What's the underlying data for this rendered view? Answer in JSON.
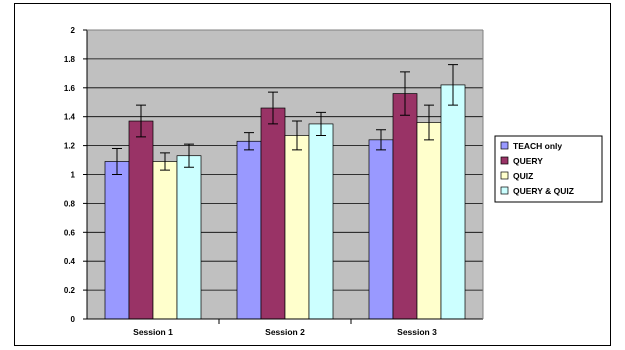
{
  "chart_data": {
    "type": "bar",
    "categories": [
      "Session 1",
      "Session 2",
      "Session 3"
    ],
    "series": [
      {
        "name": "TEACH only",
        "values": [
          1.09,
          1.23,
          1.24
        ],
        "errors": [
          0.09,
          0.06,
          0.07
        ],
        "color": "#9999FF"
      },
      {
        "name": "QUERY",
        "values": [
          1.37,
          1.46,
          1.56
        ],
        "errors": [
          0.11,
          0.11,
          0.15
        ],
        "color": "#993366"
      },
      {
        "name": "QUIZ",
        "values": [
          1.09,
          1.27,
          1.36
        ],
        "errors": [
          0.06,
          0.1,
          0.12
        ],
        "color": "#FFFFCC"
      },
      {
        "name": "QUERY & QUIZ",
        "values": [
          1.13,
          1.35,
          1.62
        ],
        "errors": [
          0.08,
          0.08,
          0.14
        ],
        "color": "#CCFFFF"
      }
    ],
    "ylim": [
      0,
      2
    ],
    "yticks": [
      "0",
      "0.2",
      "0.4",
      "0.6",
      "0.8",
      "1",
      "1.2",
      "1.4",
      "1.6",
      "1.8",
      "2"
    ],
    "grid": true,
    "plot_background": "#C0C0C0",
    "legend": "right",
    "title": "",
    "xlabel": "",
    "ylabel": ""
  }
}
